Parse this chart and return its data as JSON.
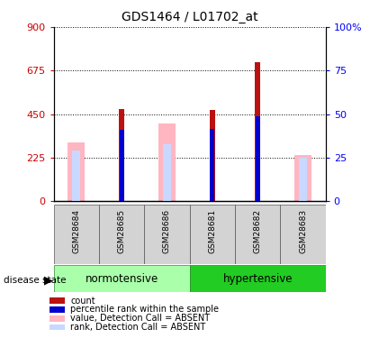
{
  "title": "GDS1464 / L01702_at",
  "samples": [
    "GSM28684",
    "GSM28685",
    "GSM28686",
    "GSM28681",
    "GSM28682",
    "GSM28683"
  ],
  "left_ylim": [
    0,
    900
  ],
  "left_yticks": [
    0,
    225,
    450,
    675,
    900
  ],
  "left_yticklabels": [
    "0",
    "225",
    "450",
    "675",
    "900"
  ],
  "right_yticklabels": [
    "0",
    "25",
    "50",
    "75",
    "100%"
  ],
  "count_values": [
    0,
    475,
    0,
    470,
    720,
    0
  ],
  "percentile_values": [
    0,
    370,
    0,
    375,
    440,
    0
  ],
  "absent_value_values": [
    305,
    0,
    400,
    0,
    0,
    238
  ],
  "absent_rank_values": [
    260,
    0,
    295,
    0,
    0,
    225
  ],
  "count_color": "#bb1111",
  "percentile_color": "#0000cc",
  "absent_value_color": "#ffb6c1",
  "absent_rank_color": "#c8d8ff",
  "legend_labels": [
    "count",
    "percentile rank within the sample",
    "value, Detection Call = ABSENT",
    "rank, Detection Call = ABSENT"
  ],
  "legend_colors": [
    "#bb1111",
    "#0000cc",
    "#ffb6c1",
    "#c8d8ff"
  ],
  "normotensive_color": "#aaffaa",
  "hypertensive_color": "#22cc22",
  "sample_area_color": "#d3d3d3"
}
